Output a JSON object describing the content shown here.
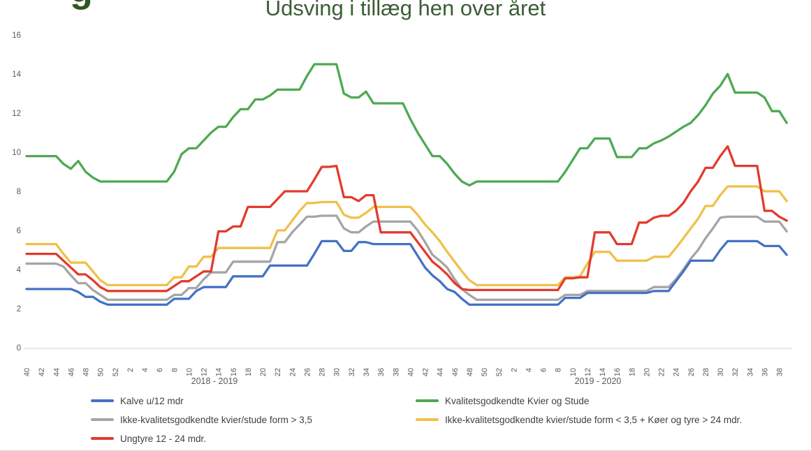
{
  "page": {
    "partial_heading_letter": "g",
    "title": "Udsving i tillæg hen over året",
    "title_color": "#3b5d36"
  },
  "legend": {
    "items": [
      {
        "label": "Kalve u/12 mdr",
        "color": "#4472c4",
        "series": "kalve"
      },
      {
        "label": "Kvalitetsgodkendte Kvier og Stude",
        "color": "#4ea952",
        "series": "kvalitetsgodkendte"
      },
      {
        "label": "Ikke-kvalitetsgodkendte kvier/stude form > 3,5",
        "color": "#a5a5a5",
        "series": "ikke_kval_over_35"
      },
      {
        "label": "Ikke-kvalitetsgodkendte kvier/stude form < 3,5 + Køer og tyre > 24 mdr.",
        "color": "#f0c04a",
        "series": "ikke_kval_under_35"
      },
      {
        "label": "Ungtyre 12 - 24 mdr.",
        "color": "#e23b2e",
        "series": "ungtyre"
      }
    ]
  },
  "chart_data": {
    "type": "line",
    "title": "Udsving i tillæg hen over året",
    "grid": false,
    "legend_position": "bottom",
    "y_axis": {
      "min": 0,
      "max": 16,
      "tick_step": 2,
      "ticks": [
        0,
        2,
        4,
        6,
        8,
        10,
        12,
        14,
        16
      ]
    },
    "x_axis": {
      "unit": "week-number",
      "labels_every": 2,
      "week_labels": [
        "40",
        "42",
        "44",
        "46",
        "48",
        "50",
        "52",
        "2",
        "4",
        "6",
        "8",
        "10",
        "12",
        "14",
        "16",
        "18",
        "20",
        "22",
        "24",
        "26",
        "28",
        "30",
        "32",
        "34",
        "36",
        "38",
        "40",
        "42",
        "44",
        "46",
        "48",
        "50",
        "52",
        "2",
        "4",
        "6",
        "8",
        "10",
        "12",
        "14",
        "16",
        "18",
        "20",
        "22",
        "24",
        "26",
        "28",
        "30",
        "32",
        "34",
        "36",
        "38"
      ],
      "period_labels": [
        "2018 - 2019",
        "2019 - 2020"
      ]
    },
    "series": [
      {
        "name": "Kalve u/12 mdr",
        "id": "kalve",
        "color": "#4472c4",
        "values": [
          3.0,
          3.0,
          3.0,
          3.0,
          3.0,
          3.0,
          3.0,
          2.85,
          2.6,
          2.6,
          2.35,
          2.2,
          2.2,
          2.2,
          2.2,
          2.2,
          2.2,
          2.2,
          2.2,
          2.2,
          2.5,
          2.5,
          2.5,
          2.9,
          3.1,
          3.1,
          3.1,
          3.1,
          3.65,
          3.65,
          3.65,
          3.65,
          3.65,
          4.2,
          4.2,
          4.2,
          4.2,
          4.2,
          4.2,
          4.8,
          5.45,
          5.45,
          5.45,
          4.95,
          4.95,
          5.4,
          5.4,
          5.3,
          5.3,
          5.3,
          5.3,
          5.3,
          5.3,
          4.7,
          4.1,
          3.7,
          3.4,
          3.0,
          2.85,
          2.5,
          2.2,
          2.2,
          2.2,
          2.2,
          2.2,
          2.2,
          2.2,
          2.2,
          2.2,
          2.2,
          2.2,
          2.2,
          2.2,
          2.55,
          2.55,
          2.55,
          2.8,
          2.8,
          2.8,
          2.8,
          2.8,
          2.8,
          2.8,
          2.8,
          2.8,
          2.9,
          2.9,
          2.9,
          3.4,
          3.9,
          4.45,
          4.45,
          4.45,
          4.45,
          5.0,
          5.45,
          5.45,
          5.45,
          5.45,
          5.45,
          5.2,
          5.2,
          5.2,
          4.75
        ]
      },
      {
        "name": "Kvalitetsgodkendte Kvier og Stude",
        "id": "kvalitetsgodkendte",
        "color": "#4ea952",
        "values": [
          9.8,
          9.8,
          9.8,
          9.8,
          9.8,
          9.4,
          9.15,
          9.55,
          9.0,
          8.7,
          8.5,
          8.5,
          8.5,
          8.5,
          8.5,
          8.5,
          8.5,
          8.5,
          8.5,
          8.5,
          9.0,
          9.9,
          10.2,
          10.2,
          10.6,
          11.0,
          11.3,
          11.3,
          11.8,
          12.2,
          12.2,
          12.7,
          12.7,
          12.9,
          13.2,
          13.2,
          13.2,
          13.2,
          13.9,
          14.5,
          14.5,
          14.5,
          14.5,
          13.0,
          12.8,
          12.8,
          13.1,
          12.5,
          12.5,
          12.5,
          12.5,
          12.5,
          11.7,
          11.0,
          10.4,
          9.8,
          9.8,
          9.4,
          8.9,
          8.5,
          8.3,
          8.5,
          8.5,
          8.5,
          8.5,
          8.5,
          8.5,
          8.5,
          8.5,
          8.5,
          8.5,
          8.5,
          8.5,
          9.0,
          9.6,
          10.2,
          10.2,
          10.7,
          10.7,
          10.7,
          9.75,
          9.75,
          9.75,
          10.2,
          10.2,
          10.45,
          10.6,
          10.8,
          11.05,
          11.3,
          11.5,
          11.9,
          12.4,
          13.0,
          13.4,
          14.0,
          13.05,
          13.05,
          13.05,
          13.05,
          12.8,
          12.1,
          12.1,
          11.5
        ]
      },
      {
        "name": "Ikke-kvalitetsgodkendte kvier/stude form > 3,5",
        "id": "ikke_kval_over_35",
        "color": "#a5a5a5",
        "values": [
          4.3,
          4.3,
          4.3,
          4.3,
          4.3,
          4.15,
          3.7,
          3.3,
          3.3,
          2.95,
          2.7,
          2.45,
          2.45,
          2.45,
          2.45,
          2.45,
          2.45,
          2.45,
          2.45,
          2.45,
          2.7,
          2.7,
          3.05,
          3.05,
          3.5,
          3.85,
          3.85,
          3.85,
          4.4,
          4.4,
          4.4,
          4.4,
          4.4,
          4.4,
          5.4,
          5.4,
          5.9,
          6.3,
          6.7,
          6.7,
          6.75,
          6.75,
          6.75,
          6.1,
          5.9,
          5.9,
          6.2,
          6.45,
          6.45,
          6.45,
          6.45,
          6.45,
          6.45,
          6.0,
          5.4,
          4.75,
          4.45,
          4.1,
          3.5,
          3.0,
          2.7,
          2.45,
          2.45,
          2.45,
          2.45,
          2.45,
          2.45,
          2.45,
          2.45,
          2.45,
          2.45,
          2.45,
          2.45,
          2.7,
          2.7,
          2.7,
          2.9,
          2.9,
          2.9,
          2.9,
          2.9,
          2.9,
          2.9,
          2.9,
          2.9,
          3.1,
          3.1,
          3.1,
          3.5,
          4.0,
          4.55,
          5.0,
          5.6,
          6.1,
          6.65,
          6.7,
          6.7,
          6.7,
          6.7,
          6.7,
          6.45,
          6.45,
          6.45,
          5.95
        ]
      },
      {
        "name": "Ikke-kvalitetsgodkendte kvier/stude form < 3,5 + Køer og tyre > 24 mdr.",
        "id": "ikke_kval_under_35",
        "color": "#f0c04a",
        "values": [
          5.3,
          5.3,
          5.3,
          5.3,
          5.3,
          4.8,
          4.35,
          4.35,
          4.35,
          3.9,
          3.45,
          3.2,
          3.2,
          3.2,
          3.2,
          3.2,
          3.2,
          3.2,
          3.2,
          3.2,
          3.6,
          3.6,
          4.15,
          4.15,
          4.65,
          4.65,
          5.1,
          5.1,
          5.1,
          5.1,
          5.1,
          5.1,
          5.1,
          5.1,
          6.0,
          6.0,
          6.5,
          7.0,
          7.4,
          7.4,
          7.45,
          7.45,
          7.45,
          6.8,
          6.65,
          6.65,
          6.9,
          7.2,
          7.2,
          7.2,
          7.2,
          7.2,
          7.2,
          6.8,
          6.3,
          5.9,
          5.45,
          4.9,
          4.4,
          3.9,
          3.45,
          3.2,
          3.2,
          3.2,
          3.2,
          3.2,
          3.2,
          3.2,
          3.2,
          3.2,
          3.2,
          3.2,
          3.2,
          3.6,
          3.6,
          3.65,
          4.3,
          4.9,
          4.9,
          4.9,
          4.45,
          4.45,
          4.45,
          4.45,
          4.45,
          4.65,
          4.65,
          4.65,
          5.1,
          5.6,
          6.1,
          6.6,
          7.25,
          7.25,
          7.8,
          8.25,
          8.25,
          8.25,
          8.25,
          8.25,
          8.0,
          8.0,
          8.0,
          7.5
        ]
      },
      {
        "name": "Ungtyre 12 - 24 mdr.",
        "id": "ungtyre",
        "color": "#e23b2e",
        "values": [
          4.8,
          4.8,
          4.8,
          4.8,
          4.8,
          4.45,
          4.1,
          3.75,
          3.75,
          3.45,
          3.1,
          2.9,
          2.9,
          2.9,
          2.9,
          2.9,
          2.9,
          2.9,
          2.9,
          2.9,
          3.15,
          3.4,
          3.4,
          3.65,
          3.9,
          3.9,
          5.95,
          5.95,
          6.2,
          6.2,
          7.2,
          7.2,
          7.2,
          7.2,
          7.6,
          8.0,
          8.0,
          8.0,
          8.0,
          8.6,
          9.25,
          9.25,
          9.3,
          7.7,
          7.7,
          7.5,
          7.8,
          7.8,
          5.9,
          5.9,
          5.9,
          5.9,
          5.9,
          5.4,
          4.9,
          4.4,
          4.1,
          3.75,
          3.3,
          3.0,
          2.95,
          2.95,
          2.95,
          2.95,
          2.95,
          2.95,
          2.95,
          2.95,
          2.95,
          2.95,
          2.95,
          2.95,
          2.95,
          3.55,
          3.55,
          3.6,
          3.6,
          5.9,
          5.9,
          5.9,
          5.3,
          5.3,
          5.3,
          6.4,
          6.4,
          6.65,
          6.75,
          6.75,
          7.0,
          7.4,
          8.0,
          8.5,
          9.2,
          9.2,
          9.8,
          10.3,
          9.3,
          9.3,
          9.3,
          9.3,
          7.0,
          7.0,
          6.7,
          6.5
        ]
      }
    ]
  }
}
